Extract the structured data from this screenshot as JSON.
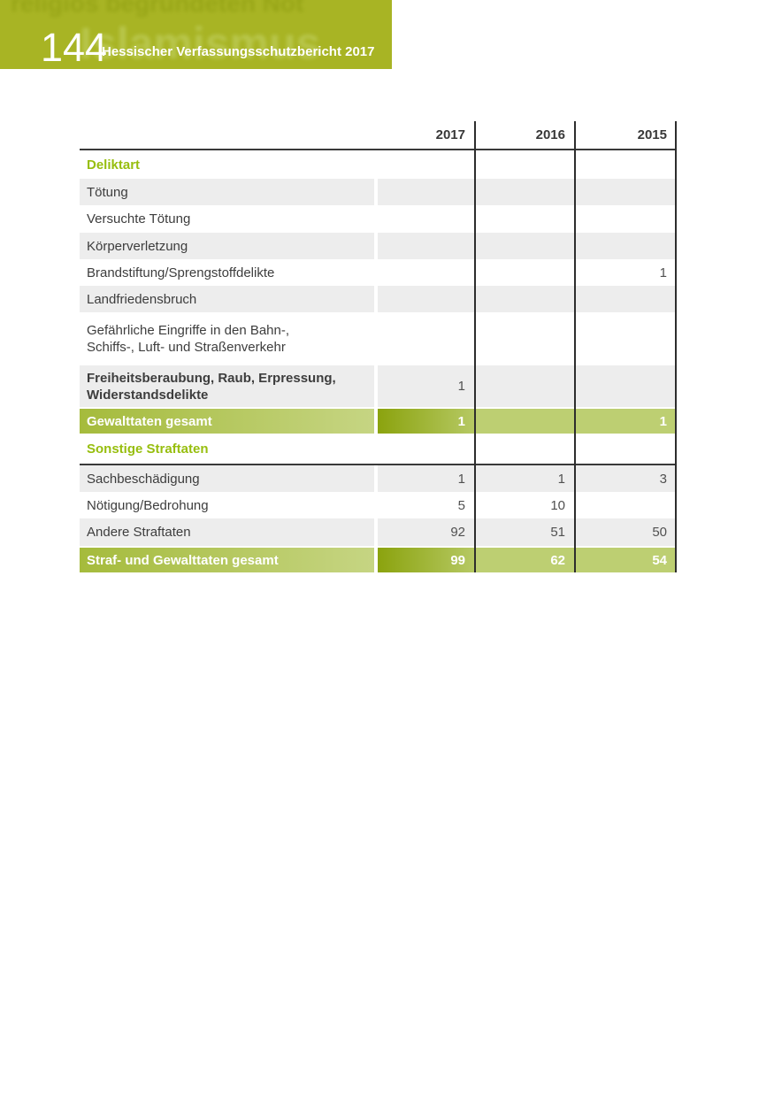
{
  "page_header": {
    "page_number": "144",
    "title": "Hessischer Verfassungsschutzbericht 2017",
    "watermark_top": "religiös begründeten Not",
    "watermark_chapter": "Islamismus"
  },
  "colors": {
    "band_green": "#a8b424",
    "accent_green": "#97be0e",
    "row_shade": "#ededed",
    "total_label_gradient": [
      "#a5bb3c",
      "#c6d583"
    ],
    "total_current_year_gradient": [
      "#8ba30e",
      "#b6c964"
    ],
    "total_light_green": "#bdcf72",
    "line_dark": "#2d2d2d"
  },
  "table": {
    "columns": [
      "2017",
      "2016",
      "2015"
    ],
    "rows": [
      {
        "label": "Deliktart",
        "style": "section",
        "shaded": false,
        "values": [
          "",
          "",
          ""
        ]
      },
      {
        "label": "Tötung",
        "style": "normal",
        "shaded": true,
        "values": [
          "",
          "",
          ""
        ]
      },
      {
        "label": "Versuchte Tötung",
        "style": "normal",
        "shaded": false,
        "values": [
          "",
          "",
          ""
        ]
      },
      {
        "label": "Körperverletzung",
        "style": "normal",
        "shaded": true,
        "values": [
          "",
          "",
          ""
        ]
      },
      {
        "label": "Brandstiftung/Sprengstoffdelikte",
        "style": "normal",
        "shaded": false,
        "values": [
          "",
          "",
          "1"
        ]
      },
      {
        "label": "Landfriedensbruch",
        "style": "normal",
        "shaded": true,
        "values": [
          "",
          "",
          ""
        ]
      },
      {
        "lines": [
          "Gefährliche Eingriffe in den Bahn-,",
          "Schiffs-, Luft- und Straßenverkehr"
        ],
        "style": "normal",
        "shaded": false,
        "values": [
          "",
          "",
          ""
        ]
      },
      {
        "lines": [
          "Freiheitsberaubung, Raub, Erpressung,",
          "Widerstandsdelikte"
        ],
        "style": "bold",
        "shaded": true,
        "values": [
          "1",
          "",
          ""
        ]
      },
      {
        "label": "Gewalttaten gesamt",
        "style": "total",
        "shaded": false,
        "values": [
          "1",
          "",
          "1"
        ],
        "gap_before": true
      },
      {
        "label": "Sonstige Straftaten",
        "style": "section",
        "shaded": false,
        "values": [
          "",
          "",
          ""
        ],
        "divider_after": true
      },
      {
        "label": "Sachbeschädigung",
        "style": "normal",
        "shaded": true,
        "values": [
          "1",
          "1",
          "3"
        ]
      },
      {
        "label": "Nötigung/Bedrohung",
        "style": "normal",
        "shaded": false,
        "values": [
          "5",
          "10",
          ""
        ]
      },
      {
        "label": "Andere Straftaten",
        "style": "normal",
        "shaded": true,
        "values": [
          "92",
          "51",
          "50"
        ]
      },
      {
        "label": "Straf- und Gewalttaten gesamt",
        "style": "total",
        "shaded": false,
        "values": [
          "99",
          "62",
          "54"
        ],
        "gap_before": true
      }
    ]
  }
}
